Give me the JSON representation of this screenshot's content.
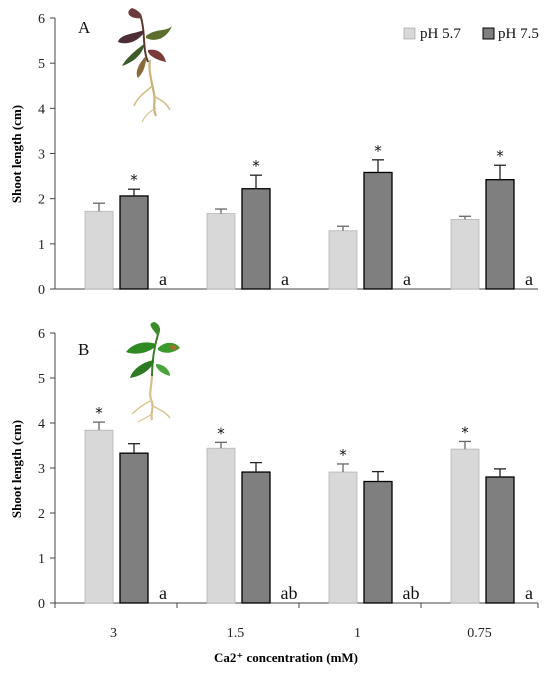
{
  "chart_data": [
    {
      "type": "bar",
      "panel": "A",
      "ylabel": "Shoot length (cm)",
      "ylim": [
        0,
        6
      ],
      "yticks": [
        0,
        1,
        2,
        3,
        4,
        5,
        6
      ],
      "categories": [
        "3",
        "1.5",
        "1",
        "0.75"
      ],
      "series": [
        {
          "name": "pH 5.7",
          "color": "#d8d8d8",
          "values": [
            1.72,
            1.67,
            1.29,
            1.54
          ],
          "errors": [
            0.18,
            0.1,
            0.1,
            0.07
          ],
          "stars": [
            false,
            false,
            false,
            false
          ]
        },
        {
          "name": "pH 7.5",
          "color": "#7f7f7f",
          "values": [
            2.06,
            2.22,
            2.58,
            2.42
          ],
          "errors": [
            0.15,
            0.3,
            0.28,
            0.32
          ],
          "stars": [
            true,
            true,
            true,
            true
          ]
        }
      ],
      "group_letters": [
        "a",
        "a",
        "a",
        "a"
      ],
      "legend": {
        "placement": "top-right",
        "labels": [
          "pH 5.7",
          "pH 7.5"
        ]
      },
      "plant_image": "plant-reddish-chlorotic-icon",
      "grid": false
    },
    {
      "type": "bar",
      "panel": "B",
      "ylabel": "Shoot length (cm)",
      "xlabel": "Ca2⁺ concentration (mM)",
      "ylim": [
        0,
        6
      ],
      "yticks": [
        0,
        1,
        2,
        3,
        4,
        5,
        6
      ],
      "categories": [
        "3",
        "1.5",
        "1",
        "0.75"
      ],
      "series": [
        {
          "name": "pH 5.7",
          "color": "#d8d8d8",
          "values": [
            3.84,
            3.44,
            2.91,
            3.42
          ],
          "errors": [
            0.18,
            0.13,
            0.18,
            0.17
          ],
          "stars": [
            true,
            true,
            true,
            true
          ]
        },
        {
          "name": "pH 7.5",
          "color": "#7f7f7f",
          "values": [
            3.33,
            2.91,
            2.7,
            2.8
          ],
          "errors": [
            0.21,
            0.21,
            0.22,
            0.18
          ],
          "stars": [
            false,
            false,
            false,
            false
          ]
        }
      ],
      "group_letters": [
        "a",
        "ab",
        "ab",
        "a"
      ],
      "plant_image": "plant-green-healthy-icon",
      "grid": false
    }
  ],
  "panels": [
    {
      "letter": "A"
    },
    {
      "letter": "B"
    }
  ],
  "star_symbol": "*"
}
